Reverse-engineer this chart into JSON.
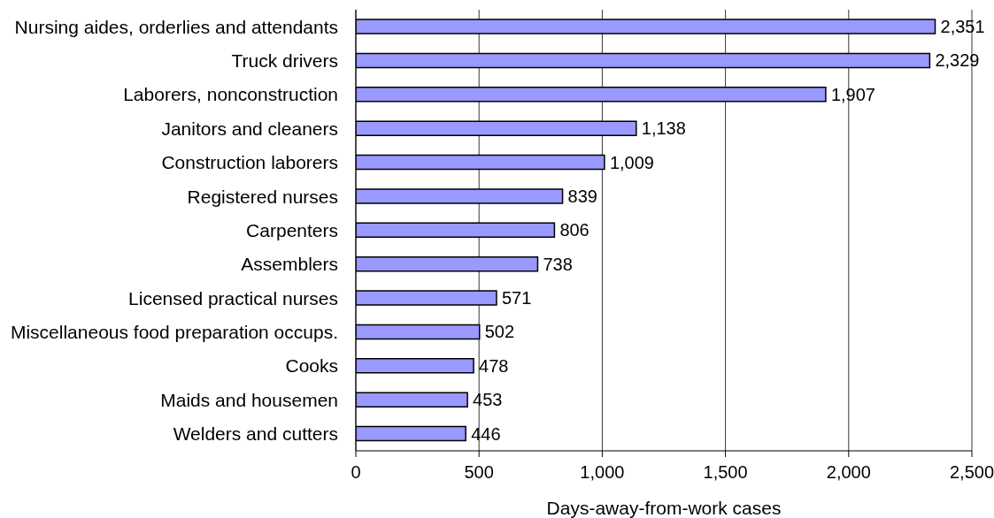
{
  "chart_data": {
    "type": "bar",
    "orientation": "horizontal",
    "xlabel": "Days-away-from-work cases",
    "categories": [
      "Nursing aides, orderlies and attendants",
      "Truck drivers",
      "Laborers, nonconstruction",
      "Janitors and cleaners",
      "Construction laborers",
      "Registered nurses",
      "Carpenters",
      "Assemblers",
      "Licensed practical nurses",
      "Miscellaneous food preparation occups.",
      "Cooks",
      "Maids and housemen",
      "Welders and cutters"
    ],
    "values": [
      2351,
      2329,
      1907,
      1138,
      1009,
      839,
      806,
      738,
      571,
      502,
      478,
      453,
      446
    ],
    "value_labels": [
      "2,351",
      "2,329",
      "1,907",
      "1,138",
      "1,009",
      "839",
      "806",
      "738",
      "571",
      "502",
      "478",
      "453",
      "446"
    ],
    "color": "#9999ff",
    "xlim": [
      0,
      2500
    ],
    "xticks": [
      0,
      500,
      {
        "value": 1000,
        "label": "1,000"
      },
      {
        "value": 1500,
        "label": "1,500"
      },
      {
        "value": 2000,
        "label": "2,000"
      },
      {
        "value": 2500,
        "label": "2,500"
      }
    ],
    "grid": "x"
  }
}
